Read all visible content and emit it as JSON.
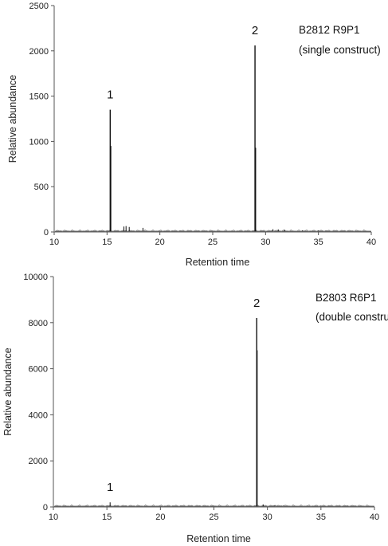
{
  "chart_data": [
    {
      "type": "line",
      "xlabel": "Retention time",
      "ylabel": "Relative abundance",
      "xlim": [
        10,
        40
      ],
      "ylim": [
        0,
        2500
      ],
      "xticks": [
        "10",
        "15",
        "20",
        "25",
        "30",
        "35",
        "40"
      ],
      "yticks": [
        "0",
        "500",
        "1000",
        "1500",
        "2000",
        "2500"
      ],
      "grid": false,
      "annotation_lines": [
        "B2812 R9P1",
        "(single construct)"
      ],
      "peak_labels": [
        {
          "text": "1",
          "x": 15.3,
          "y": 1350
        },
        {
          "text": "2",
          "x": 29.0,
          "y": 2060
        }
      ],
      "baseline": 8,
      "peaks": [
        {
          "x": 15.3,
          "y": 1350
        },
        {
          "x": 15.35,
          "y": 950
        },
        {
          "x": 16.6,
          "y": 60
        },
        {
          "x": 16.8,
          "y": 65
        },
        {
          "x": 17.1,
          "y": 55
        },
        {
          "x": 18.4,
          "y": 45
        },
        {
          "x": 29.0,
          "y": 2060
        },
        {
          "x": 29.05,
          "y": 930
        },
        {
          "x": 30.7,
          "y": 30
        },
        {
          "x": 31.2,
          "y": 28
        },
        {
          "x": 31.8,
          "y": 25
        },
        {
          "x": 33.5,
          "y": 18
        },
        {
          "x": 35.0,
          "y": 15
        }
      ]
    },
    {
      "type": "line",
      "xlabel": "Retention time",
      "ylabel": "Relative abundance",
      "xlim": [
        10,
        40
      ],
      "ylim": [
        0,
        10000
      ],
      "xticks": [
        "10",
        "15",
        "20",
        "25",
        "30",
        "35",
        "40"
      ],
      "yticks": [
        "0",
        "2000",
        "4000",
        "6000",
        "8000",
        "10000"
      ],
      "grid": false,
      "annotation_lines": [
        "B2803 R6P1",
        "(double construct)"
      ],
      "peak_labels": [
        {
          "text": "1",
          "x": 15.3,
          "y": 200
        },
        {
          "text": "2",
          "x": 29.0,
          "y": 8200
        }
      ],
      "baseline": 30,
      "peaks": [
        {
          "x": 15.3,
          "y": 200
        },
        {
          "x": 29.0,
          "y": 8200
        },
        {
          "x": 29.03,
          "y": 6800
        },
        {
          "x": 29.6,
          "y": 110
        },
        {
          "x": 30.7,
          "y": 80
        },
        {
          "x": 31.5,
          "y": 60
        }
      ]
    }
  ]
}
